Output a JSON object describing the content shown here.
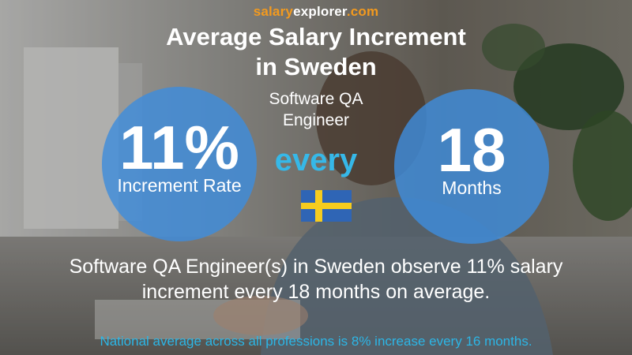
{
  "site": {
    "prefix": "salary",
    "highlight": "explorer",
    "suffix": ".com"
  },
  "title": {
    "line1": "Average Salary Increment",
    "line2": "in Sweden"
  },
  "job": {
    "line1": "Software QA",
    "line2": "Engineer"
  },
  "increment": {
    "value": "11%",
    "label": "Increment Rate"
  },
  "connector": "every",
  "period": {
    "value": "18",
    "label": "Months"
  },
  "flag": {
    "icon": "sweden-flag-icon",
    "blue": "#2f65b5",
    "yellow": "#f6cc1e"
  },
  "summary": {
    "line1": "Software QA Engineer(s) in Sweden observe 11% salary",
    "line2": "increment every 18 months on average."
  },
  "footer": "National average across all professions is 8% increase every 16 months.",
  "colors": {
    "circle": "#3e8cdc",
    "every": "#36b8e8",
    "brand_orange": "#f39a1e",
    "footer": "#2cb6e6"
  }
}
